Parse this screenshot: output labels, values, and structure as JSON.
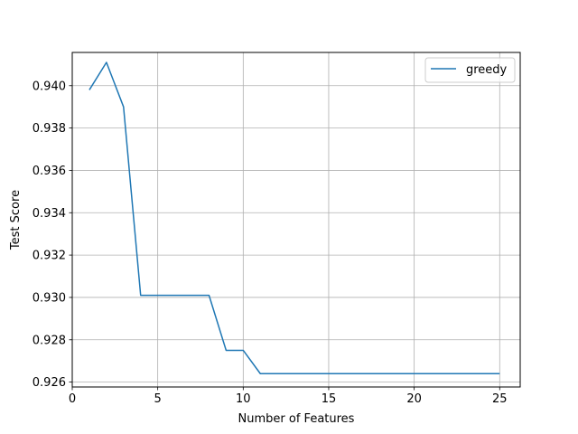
{
  "chart_data": {
    "type": "line",
    "title": "",
    "xlabel": "Number of Features",
    "ylabel": "Test Score",
    "xlim": [
      0,
      26.2
    ],
    "ylim": [
      0.92577,
      0.94157
    ],
    "xticks": [
      0,
      5,
      10,
      15,
      20,
      25
    ],
    "xtick_labels": [
      "0",
      "5",
      "10",
      "15",
      "20",
      "25"
    ],
    "yticks": [
      0.926,
      0.928,
      0.93,
      0.932,
      0.934,
      0.936,
      0.938,
      0.94
    ],
    "ytick_labels": [
      "0.926",
      "0.928",
      "0.930",
      "0.932",
      "0.934",
      "0.936",
      "0.938",
      "0.940"
    ],
    "grid": true,
    "legend_position": "top-right",
    "series": [
      {
        "name": "greedy",
        "color": "#1f77b4",
        "x": [
          1,
          2,
          3,
          4,
          5,
          6,
          7,
          8,
          9,
          10,
          11,
          12,
          13,
          14,
          15,
          16,
          17,
          18,
          19,
          20,
          21,
          22,
          23,
          24,
          25
        ],
        "y": [
          0.9398,
          0.9411,
          0.939,
          0.9301,
          0.9301,
          0.9301,
          0.9301,
          0.9301,
          0.9275,
          0.9275,
          0.9264,
          0.9264,
          0.9264,
          0.9264,
          0.9264,
          0.9264,
          0.9264,
          0.9264,
          0.9264,
          0.9264,
          0.9264,
          0.9264,
          0.9264,
          0.9264,
          0.9264
        ]
      }
    ]
  }
}
